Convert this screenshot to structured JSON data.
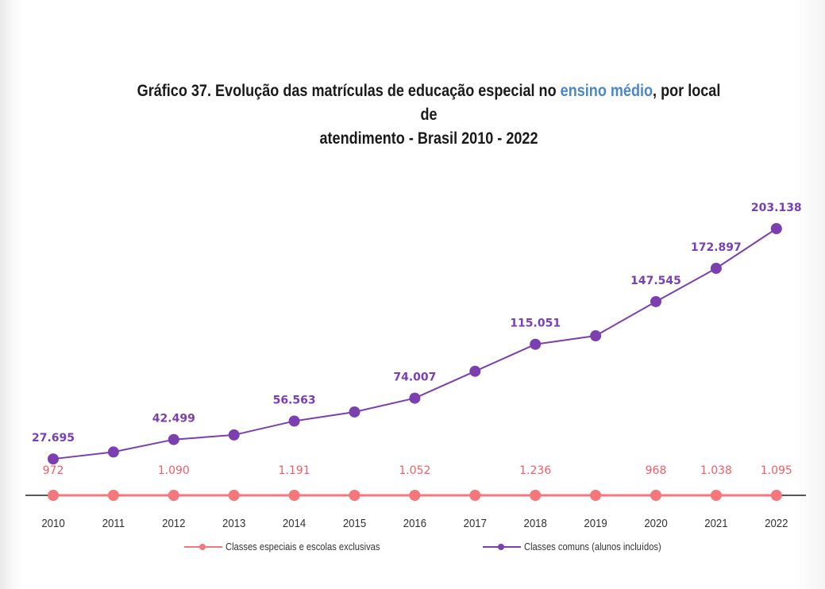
{
  "title": {
    "part1": "Gráfico 37. Evolução das matrículas de educação especial no ",
    "highlight": "ensino médio",
    "part2": ", por local de",
    "line2": "atendimento  - Brasil 2010 - 2022"
  },
  "colors": {
    "comuns": "#7b3fb0",
    "comuns_label": "#7a3fb5",
    "especiais": "#f4777b",
    "especiais_label": "#f25c66",
    "axis": "#222222",
    "highlight": "#4a86c8"
  },
  "chart_data": {
    "type": "line",
    "title": "Gráfico 37. Evolução das matrículas de educação especial no ensino médio, por local de atendimento  - Brasil 2010 - 2022",
    "xlabel": "",
    "ylabel": "",
    "categories": [
      "2010",
      "2011",
      "2012",
      "2013",
      "2014",
      "2015",
      "2016",
      "2017",
      "2018",
      "2019",
      "2020",
      "2021",
      "2022"
    ],
    "ylim": [
      0,
      210000
    ],
    "grid": false,
    "legend_position": "bottom",
    "series": [
      {
        "name": "Classes especiais e escolas exclusivas",
        "values": [
          972,
          1000,
          1090,
          1120,
          1191,
          1100,
          1052,
          1150,
          1236,
          1050,
          968,
          1038,
          1095
        ],
        "labels": [
          "972",
          "",
          "1.090",
          "",
          "1.191",
          "",
          "1.052",
          "",
          "1.236",
          "",
          "968",
          "1.038",
          "1.095"
        ]
      },
      {
        "name": "Classes comuns (alunos incluídos)",
        "values": [
          27695,
          33000,
          42499,
          46000,
          56563,
          63500,
          74007,
          94500,
          115051,
          121500,
          147545,
          172897,
          203138
        ],
        "labels": [
          "27.695",
          "",
          "42.499",
          "",
          "56.563",
          "",
          "74.007",
          "",
          "115.051",
          "",
          "147.545",
          "172.897",
          "203.138"
        ]
      }
    ]
  }
}
